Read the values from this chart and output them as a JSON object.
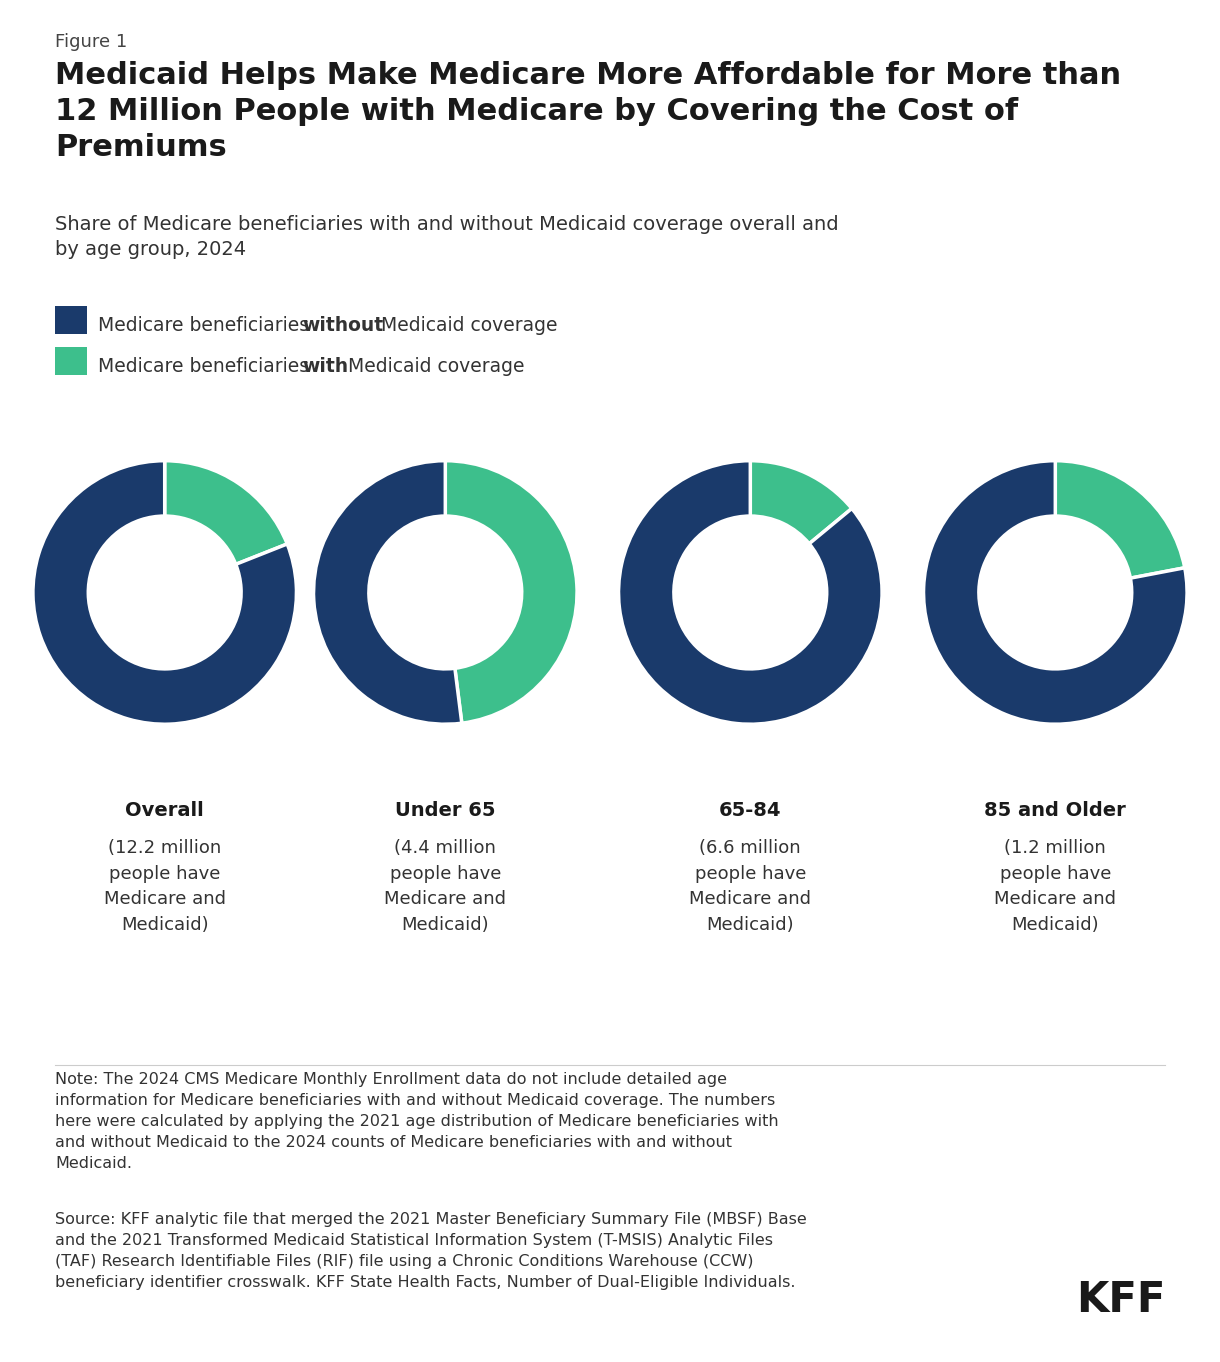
{
  "figure_label": "Figure 1",
  "title_line1": "Medicaid Helps Make Medicare More Affordable for More than",
  "title_line2": "12 Million People with Medicare by Covering the Cost of",
  "title_line3": "Premiums",
  "subtitle": "Share of Medicare beneficiaries with and without Medicaid coverage overall and\nby age group, 2024",
  "color_without": "#1a3a6b",
  "color_with": "#3dbf8c",
  "color_white": "#ffffff",
  "charts": [
    {
      "label_bold": "Overall",
      "label_sub": "(12.2 million\npeople have\nMedicare and\nMedicaid)",
      "with_pct": 19.0,
      "without_pct": 81.0
    },
    {
      "label_bold": "Under 65",
      "label_sub": "(4.4 million\npeople have\nMedicare and\nMedicaid)",
      "with_pct": 48.0,
      "without_pct": 52.0
    },
    {
      "label_bold": "65-84",
      "label_sub": "(6.6 million\npeople have\nMedicare and\nMedicaid)",
      "with_pct": 14.0,
      "without_pct": 86.0
    },
    {
      "label_bold": "85 and Older",
      "label_sub": "(1.2 million\npeople have\nMedicare and\nMedicaid)",
      "with_pct": 22.0,
      "without_pct": 78.0
    }
  ],
  "note_text": "Note: The 2024 CMS Medicare Monthly Enrollment data do not include detailed age\ninformation for Medicare beneficiaries with and without Medicaid coverage. The numbers\nhere were calculated by applying the 2021 age distribution of Medicare beneficiaries with\nand without Medicaid to the 2024 counts of Medicare beneficiaries with and without\nMedicaid.",
  "source_text": "Source: KFF analytic file that merged the 2021 Master Beneficiary Summary File (MBSF) Base\nand the 2021 Transformed Medicaid Statistical Information System (T-MSIS) Analytic Files\n(TAF) Research Identifiable Files (RIF) file using a Chronic Conditions Warehouse (CCW)\nbeneficiary identifier crosswalk. KFF State Health Facts, Number of Dual-Eligible Individuals.",
  "kff_label": "KFF",
  "background_color": "#ffffff"
}
